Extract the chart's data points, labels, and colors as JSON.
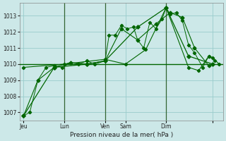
{
  "bg_color": "#cce8e8",
  "grid_color": "#99cccc",
  "line_color": "#006600",
  "vline_color": "#336633",
  "xlabel": "Pression niveau de la mer( hPa )",
  "ylim": [
    1006.5,
    1013.8
  ],
  "yticks": [
    1007,
    1008,
    1009,
    1010,
    1011,
    1012,
    1013
  ],
  "xlim": [
    0,
    100
  ],
  "xtick_positions": [
    2,
    22,
    42,
    52,
    72,
    95
  ],
  "xtick_labels": [
    "Jeu",
    "Lun",
    "Ven",
    "Sam",
    "Dim",
    ""
  ],
  "vline_positions": [
    22,
    42,
    72
  ],
  "flat_y": 1010.0,
  "line1_x": [
    2,
    5,
    9,
    13,
    17,
    21,
    25,
    29,
    33,
    37,
    42,
    44,
    47,
    50,
    53,
    56,
    58,
    61,
    64,
    67,
    70,
    72,
    74,
    77,
    80,
    83,
    86,
    90,
    93,
    96
  ],
  "line1_y": [
    1006.8,
    1007.0,
    1009.0,
    1009.8,
    1009.9,
    1009.8,
    1010.1,
    1010.0,
    1010.2,
    1010.0,
    1010.2,
    1011.8,
    1011.8,
    1012.4,
    1012.2,
    1012.3,
    1011.5,
    1011.0,
    1012.6,
    1012.2,
    1012.8,
    1013.5,
    1013.1,
    1013.2,
    1012.7,
    1011.2,
    1010.7,
    1009.8,
    1010.5,
    1010.2
  ],
  "line2_x": [
    2,
    9,
    17,
    25,
    33,
    42,
    50,
    58,
    67,
    74,
    80,
    86,
    93
  ],
  "line2_y": [
    1006.8,
    1009.0,
    1009.8,
    1010.1,
    1010.0,
    1010.2,
    1012.2,
    1011.5,
    1012.5,
    1013.2,
    1012.9,
    1011.0,
    1009.9
  ],
  "line3_x": [
    2,
    17,
    33,
    42,
    58,
    72,
    83,
    95
  ],
  "line3_y": [
    1006.8,
    1009.8,
    1010.0,
    1010.2,
    1012.3,
    1013.5,
    1010.5,
    1010.0
  ],
  "line4_x": [
    2,
    22,
    42,
    52,
    62,
    72,
    83,
    88,
    93,
    95,
    98
  ],
  "line4_y": [
    1009.8,
    1010.0,
    1010.3,
    1010.0,
    1010.9,
    1013.5,
    1009.8,
    1009.6,
    1010.5,
    1010.4,
    1010.0
  ]
}
